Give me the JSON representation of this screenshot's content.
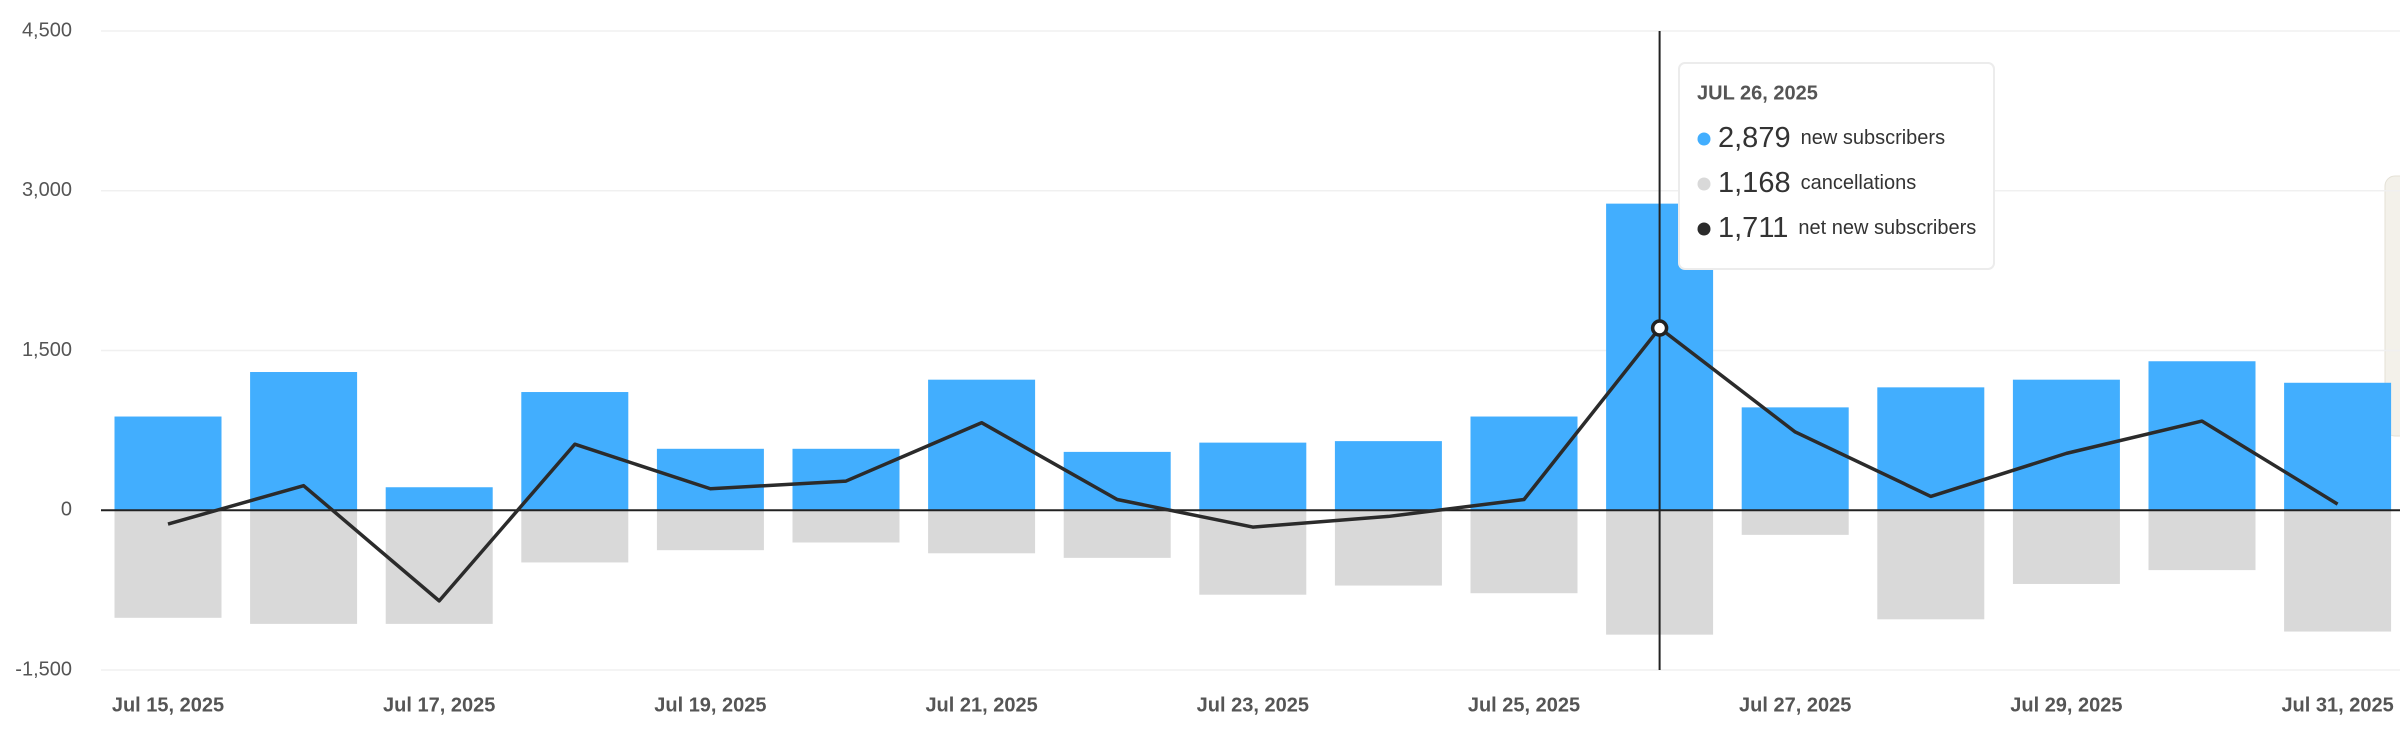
{
  "chart_data": {
    "type": "bar-line",
    "categories": [
      "Jul 15, 2025",
      null,
      "Jul 17, 2025",
      null,
      "Jul 19, 2025",
      null,
      "Jul 21, 2025",
      null,
      "Jul 23, 2025",
      null,
      "Jul 25, 2025",
      null,
      "Jul 27, 2025",
      null,
      "Jul 29, 2025",
      null,
      "Jul 31, 2025"
    ],
    "series": [
      {
        "name": "new subscribers",
        "color": "#42aefe",
        "kind": "bar",
        "values": [
          880,
          1298,
          216,
          1110,
          577,
          577,
          1226,
          548,
          635,
          649,
          880,
          2879,
          966,
          1154,
          1226,
          1399,
          1197
        ]
      },
      {
        "name": "cancellations",
        "color": "#d9d9d9",
        "kind": "bar",
        "values": [
          -1010,
          -1067,
          -1067,
          -490,
          -375,
          -303,
          -404,
          -447,
          -793,
          -707,
          -779,
          -1168,
          -231,
          -1024,
          -692,
          -562,
          -1139
        ]
      },
      {
        "name": "net new subscribers",
        "color": "#2b2b2b",
        "kind": "line",
        "values": [
          -130,
          231,
          -851,
          620,
          202,
          274,
          822,
          101,
          -158,
          -58,
          101,
          1711,
          735,
          130,
          534,
          837,
          58
        ]
      }
    ],
    "ylim": [
      -1500,
      4500
    ],
    "yticks": [
      {
        "value": -1500,
        "label": "-1,500"
      },
      0,
      {
        "value": 1500,
        "label": "1,500"
      },
      {
        "value": 3000,
        "label": "3,000"
      },
      {
        "value": 4500,
        "label": "4,500"
      }
    ],
    "grid": true,
    "tooltip": {
      "index": 11,
      "date": "JUL 26, 2025",
      "labels": [
        "2,879",
        "1,168",
        "1,711"
      ]
    }
  }
}
